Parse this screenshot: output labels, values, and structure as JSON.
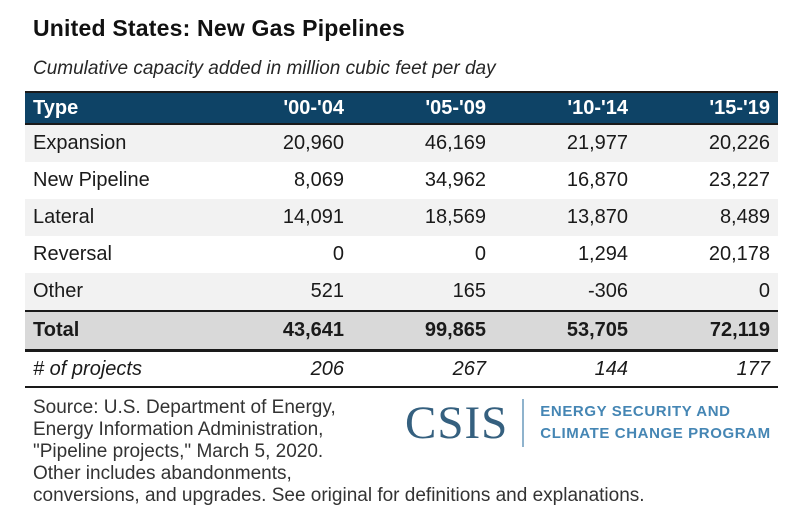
{
  "title": "United States: New Gas Pipelines",
  "subtitle": "Cumulative capacity added in million cubic feet per day",
  "table": {
    "columns": [
      "Type",
      "'00-'04",
      "'05-'09",
      "'10-'14",
      "'15-'19"
    ],
    "rows": [
      {
        "label": "Expansion",
        "values": [
          "20,960",
          "46,169",
          "21,977",
          "20,226"
        ]
      },
      {
        "label": "New Pipeline",
        "values": [
          "8,069",
          "34,962",
          "16,870",
          "23,227"
        ]
      },
      {
        "label": "Lateral",
        "values": [
          "14,091",
          "18,569",
          "13,870",
          "8,489"
        ]
      },
      {
        "label": "Reversal",
        "values": [
          "0",
          "0",
          "1,294",
          "20,178"
        ]
      },
      {
        "label": "Other",
        "values": [
          "521",
          "165",
          "-306",
          "0"
        ]
      }
    ],
    "total": {
      "label": "Total",
      "values": [
        "43,641",
        "99,865",
        "53,705",
        "72,119"
      ]
    },
    "projects": {
      "label": "# of projects",
      "values": [
        "206",
        "267",
        "144",
        "177"
      ]
    }
  },
  "source": {
    "lines": [
      "Source: U.S. Department of Energy,",
      "Energy Information Administration,",
      "\"Pipeline projects,\" March 5, 2020.",
      "Other includes abandonments,",
      "conversions, and upgrades. See original for definitions and explanations."
    ]
  },
  "logo": {
    "wordmark": "CSIS",
    "program_line1": "ENERGY SECURITY AND",
    "program_line2": "CLIMATE CHANGE PROGRAM"
  },
  "colors": {
    "header_bg": "#0e4366",
    "stripe": "#f2f2f2",
    "total_bg": "#d9d9d9",
    "rule_dark": "#1a1a1a",
    "logo_dark": "#35607f",
    "logo_light": "#4586b4",
    "logo_divider": "#8fb3cd"
  },
  "chart_data": {
    "type": "table",
    "title": "United States: New Gas Pipelines",
    "subtitle": "Cumulative capacity added in million cubic feet per day",
    "categories": [
      "'00-'04",
      "'05-'09",
      "'10-'14",
      "'15-'19"
    ],
    "series": [
      {
        "name": "Expansion",
        "values": [
          20960,
          46169,
          21977,
          20226
        ]
      },
      {
        "name": "New Pipeline",
        "values": [
          8069,
          34962,
          16870,
          23227
        ]
      },
      {
        "name": "Lateral",
        "values": [
          14091,
          18569,
          13870,
          8489
        ]
      },
      {
        "name": "Reversal",
        "values": [
          0,
          0,
          1294,
          20178
        ]
      },
      {
        "name": "Other",
        "values": [
          521,
          165,
          -306,
          0
        ]
      },
      {
        "name": "Total",
        "values": [
          43641,
          99865,
          53705,
          72119
        ]
      },
      {
        "name": "# of projects",
        "values": [
          206,
          267,
          144,
          177
        ]
      }
    ],
    "units": "million cubic feet per day"
  }
}
